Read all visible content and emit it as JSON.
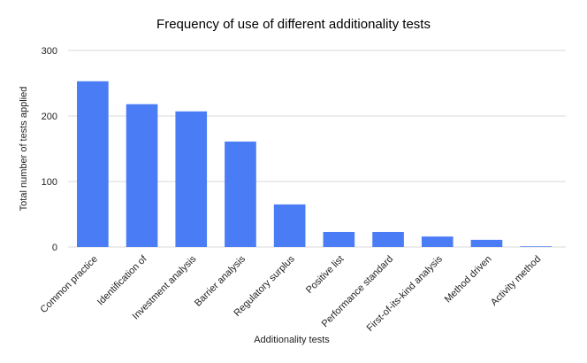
{
  "chart_data": {
    "type": "bar",
    "title": "Frequency of use of different additionality tests",
    "x_label": "Additionality tests",
    "y_label": "Total number of tests applied",
    "categories": [
      "Common practice",
      "Identification of",
      "Investment analysis",
      "Barrier analysis",
      "Regulatory surplus",
      "Positive list",
      "Performance standard",
      "First-of-its-kind analysis",
      "Method driven",
      "Activity method"
    ],
    "values": [
      253,
      218,
      207,
      161,
      65,
      23,
      23,
      16,
      11,
      1
    ],
    "color": "#4a7cf6",
    "ylim": [
      0,
      300
    ],
    "yticks": [
      0,
      100,
      200,
      300
    ],
    "grid": true
  }
}
